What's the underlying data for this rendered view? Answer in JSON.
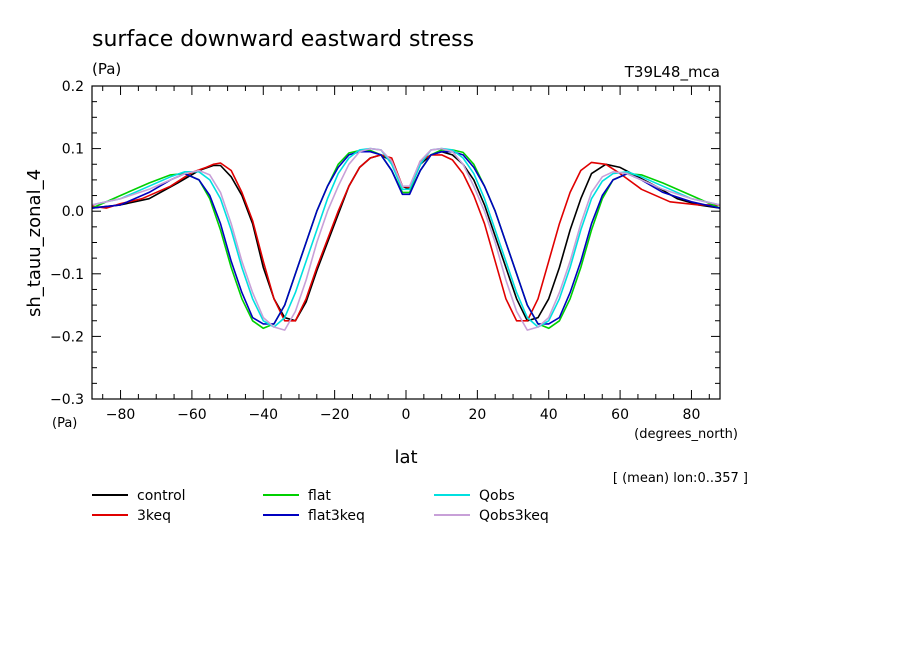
{
  "chart_data": {
    "type": "line",
    "title": "surface downward eastward stress",
    "units": "(Pa)",
    "units_bottom": "(Pa)",
    "experiment": "T39L48_mca",
    "ylabel": "sh_tauu_zonal_4",
    "xlabel": "lat",
    "xunits": "(degrees_north)",
    "footnote": "[ (mean) lon:0..357 ]",
    "xlim": [
      -88,
      88
    ],
    "ylim": [
      -0.3,
      0.2
    ],
    "x_ticks": [
      -80,
      -60,
      -40,
      -20,
      0,
      20,
      40,
      60,
      80
    ],
    "y_ticks": [
      -0.3,
      -0.2,
      -0.1,
      0.0,
      0.1,
      0.2
    ],
    "x_tick_labels": [
      "−80",
      "−60",
      "−40",
      "−20",
      "0",
      "20",
      "40",
      "60",
      "80"
    ],
    "y_tick_labels": [
      "−0.3",
      "−0.2",
      "−0.1",
      "0.0",
      "0.1",
      "0.2"
    ],
    "legend_placement": "bottom",
    "series": [
      {
        "name": "control",
        "color": "#000000",
        "x": [
          -88,
          -80,
          -72,
          -64,
          -58,
          -54,
          -52,
          -49,
          -46,
          -43,
          -40,
          -37,
          -34,
          -31,
          -28,
          -25,
          -22,
          -19,
          -16,
          -13,
          -10,
          -7,
          -4,
          -1,
          1,
          4,
          7,
          10,
          13,
          16,
          19,
          22,
          25,
          28,
          31,
          34,
          37,
          40,
          43,
          46,
          49,
          52,
          56,
          60,
          65,
          70,
          76,
          82,
          88
        ],
        "y": [
          0.005,
          0.01,
          0.02,
          0.045,
          0.065,
          0.073,
          0.073,
          0.055,
          0.025,
          -0.02,
          -0.09,
          -0.14,
          -0.17,
          -0.175,
          -0.145,
          -0.095,
          -0.05,
          -0.005,
          0.04,
          0.07,
          0.085,
          0.09,
          0.08,
          0.04,
          0.035,
          0.075,
          0.09,
          0.095,
          0.09,
          0.075,
          0.05,
          0.01,
          -0.04,
          -0.09,
          -0.14,
          -0.175,
          -0.17,
          -0.14,
          -0.09,
          -0.03,
          0.02,
          0.06,
          0.075,
          0.07,
          0.055,
          0.04,
          0.02,
          0.01,
          0.005
        ]
      },
      {
        "name": "3keq",
        "color": "#e00000",
        "x": [
          -88,
          -84,
          -80,
          -74,
          -66,
          -60,
          -56,
          -54,
          -52,
          -49,
          -46,
          -43,
          -40,
          -37,
          -34,
          -31,
          -28,
          -25,
          -22,
          -19,
          -16,
          -13,
          -10,
          -7,
          -4,
          -1,
          1,
          4,
          7,
          10,
          13,
          16,
          19,
          22,
          25,
          28,
          31,
          34,
          37,
          40,
          43,
          46,
          49,
          52,
          56,
          60,
          66,
          74,
          82,
          88
        ],
        "y": [
          0.008,
          0.005,
          0.012,
          0.02,
          0.04,
          0.062,
          0.07,
          0.075,
          0.077,
          0.065,
          0.03,
          -0.015,
          -0.08,
          -0.14,
          -0.175,
          -0.175,
          -0.14,
          -0.09,
          -0.045,
          0.0,
          0.04,
          0.07,
          0.085,
          0.09,
          0.085,
          0.04,
          0.038,
          0.08,
          0.09,
          0.09,
          0.082,
          0.06,
          0.025,
          -0.02,
          -0.08,
          -0.14,
          -0.175,
          -0.175,
          -0.14,
          -0.08,
          -0.02,
          0.03,
          0.065,
          0.078,
          0.075,
          0.06,
          0.035,
          0.015,
          0.01,
          0.01
        ]
      },
      {
        "name": "flat",
        "color": "#00d000",
        "x": [
          -88,
          -80,
          -72,
          -66,
          -62,
          -58,
          -55,
          -52,
          -49,
          -46,
          -43,
          -40,
          -37,
          -34,
          -31,
          -28,
          -25,
          -22,
          -19,
          -16,
          -13,
          -10,
          -7,
          -4,
          -1,
          1,
          4,
          7,
          10,
          13,
          16,
          19,
          22,
          25,
          28,
          31,
          34,
          37,
          40,
          43,
          46,
          49,
          52,
          55,
          58,
          62,
          66,
          72,
          80,
          88
        ],
        "y": [
          0.005,
          0.025,
          0.045,
          0.058,
          0.06,
          0.05,
          0.02,
          -0.03,
          -0.09,
          -0.14,
          -0.175,
          -0.187,
          -0.18,
          -0.15,
          -0.1,
          -0.05,
          0.0,
          0.04,
          0.075,
          0.093,
          0.097,
          0.097,
          0.09,
          0.065,
          0.03,
          0.03,
          0.065,
          0.09,
          0.098,
          0.098,
          0.094,
          0.075,
          0.04,
          0.0,
          -0.05,
          -0.1,
          -0.15,
          -0.18,
          -0.187,
          -0.175,
          -0.14,
          -0.09,
          -0.03,
          0.02,
          0.05,
          0.06,
          0.058,
          0.045,
          0.025,
          0.005
        ]
      },
      {
        "name": "flat3keq",
        "color": "#0000c0",
        "x": [
          -88,
          -80,
          -72,
          -66,
          -62,
          -58,
          -55,
          -52,
          -49,
          -46,
          -43,
          -40,
          -37,
          -34,
          -31,
          -28,
          -25,
          -22,
          -19,
          -16,
          -13,
          -10,
          -7,
          -4,
          -1,
          1,
          4,
          7,
          10,
          13,
          16,
          19,
          22,
          25,
          28,
          31,
          34,
          37,
          40,
          43,
          46,
          49,
          52,
          55,
          58,
          62,
          66,
          72,
          80,
          88
        ],
        "y": [
          0.005,
          0.01,
          0.03,
          0.05,
          0.06,
          0.05,
          0.025,
          -0.02,
          -0.08,
          -0.13,
          -0.17,
          -0.18,
          -0.18,
          -0.15,
          -0.1,
          -0.05,
          0.0,
          0.04,
          0.07,
          0.09,
          0.095,
          0.095,
          0.09,
          0.065,
          0.027,
          0.027,
          0.065,
          0.09,
          0.095,
          0.095,
          0.09,
          0.07,
          0.04,
          0.0,
          -0.05,
          -0.1,
          -0.15,
          -0.18,
          -0.18,
          -0.17,
          -0.13,
          -0.08,
          -0.02,
          0.025,
          0.05,
          0.06,
          0.05,
          0.03,
          0.015,
          0.005
        ]
      },
      {
        "name": "Qobs",
        "color": "#00e0e0",
        "x": [
          -88,
          -80,
          -72,
          -66,
          -62,
          -58,
          -55,
          -52,
          -49,
          -46,
          -43,
          -40,
          -37,
          -34,
          -31,
          -28,
          -25,
          -22,
          -19,
          -16,
          -13,
          -10,
          -7,
          -4,
          -1,
          1,
          4,
          7,
          10,
          13,
          16,
          19,
          22,
          25,
          28,
          31,
          34,
          37,
          40,
          43,
          46,
          49,
          52,
          55,
          58,
          62,
          66,
          72,
          80,
          88
        ],
        "y": [
          0.01,
          0.02,
          0.04,
          0.055,
          0.063,
          0.063,
          0.05,
          0.02,
          -0.03,
          -0.09,
          -0.14,
          -0.175,
          -0.185,
          -0.17,
          -0.13,
          -0.08,
          -0.03,
          0.02,
          0.06,
          0.085,
          0.098,
          0.1,
          0.098,
          0.075,
          0.035,
          0.035,
          0.075,
          0.098,
          0.1,
          0.098,
          0.085,
          0.06,
          0.02,
          -0.03,
          -0.08,
          -0.13,
          -0.17,
          -0.185,
          -0.175,
          -0.14,
          -0.09,
          -0.03,
          0.02,
          0.048,
          0.06,
          0.063,
          0.055,
          0.04,
          0.02,
          0.01
        ]
      },
      {
        "name": "Qobs3keq",
        "color": "#c8a0d8",
        "x": [
          -88,
          -80,
          -72,
          -66,
          -62,
          -58,
          -55,
          -52,
          -49,
          -46,
          -43,
          -40,
          -37,
          -34,
          -31,
          -28,
          -25,
          -22,
          -19,
          -16,
          -13,
          -10,
          -7,
          -4,
          -1,
          1,
          4,
          7,
          10,
          13,
          16,
          19,
          22,
          25,
          28,
          31,
          34,
          37,
          40,
          43,
          46,
          49,
          52,
          55,
          58,
          62,
          66,
          72,
          80,
          88
        ],
        "y": [
          0.01,
          0.02,
          0.035,
          0.05,
          0.06,
          0.065,
          0.058,
          0.03,
          -0.02,
          -0.08,
          -0.13,
          -0.17,
          -0.185,
          -0.19,
          -0.16,
          -0.11,
          -0.05,
          0.0,
          0.04,
          0.075,
          0.095,
          0.1,
          0.098,
          0.08,
          0.04,
          0.04,
          0.08,
          0.098,
          0.1,
          0.095,
          0.075,
          0.04,
          0.0,
          -0.05,
          -0.11,
          -0.16,
          -0.19,
          -0.185,
          -0.17,
          -0.13,
          -0.08,
          -0.02,
          0.03,
          0.055,
          0.063,
          0.06,
          0.05,
          0.035,
          0.02,
          0.01
        ]
      }
    ]
  }
}
